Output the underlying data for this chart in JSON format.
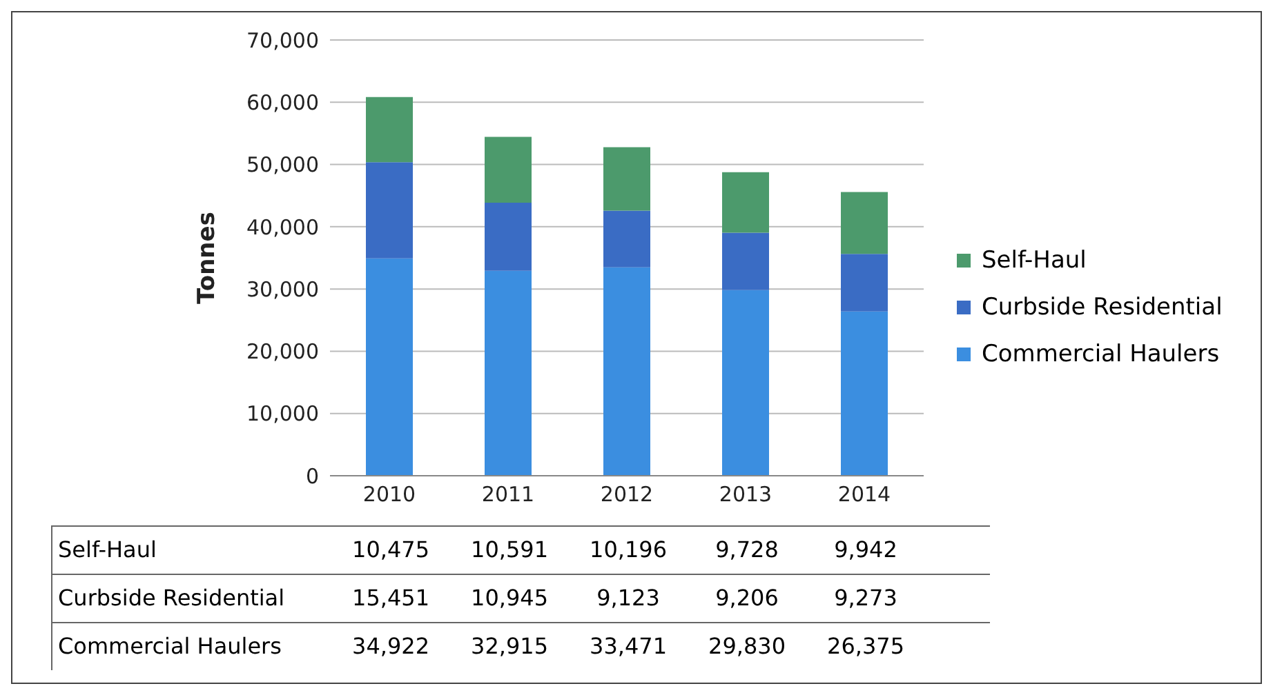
{
  "chart_data": {
    "type": "bar",
    "stacked": true,
    "ylabel": "Tonnes",
    "categories": [
      "2010",
      "2011",
      "2012",
      "2013",
      "2014"
    ],
    "series": [
      {
        "name": "Commercial Haulers",
        "color": "#3b8ee0",
        "values": [
          34922,
          32915,
          33471,
          29830,
          26375
        ],
        "value_labels": [
          "34,922",
          "32,915",
          "33,471",
          "29,830",
          "26,375"
        ]
      },
      {
        "name": "Curbside Residential",
        "color": "#3a6cc4",
        "values": [
          15451,
          10945,
          9123,
          9206,
          9273
        ],
        "value_labels": [
          "15,451",
          "10,945",
          "9,123",
          "9,206",
          "9,273"
        ]
      },
      {
        "name": "Self-Haul",
        "color": "#4c9a6c",
        "values": [
          10475,
          10591,
          10196,
          9728,
          9942
        ],
        "value_labels": [
          "10,475",
          "10,591",
          "10,196",
          "9,728",
          "9,942"
        ]
      }
    ],
    "ylim": [
      0,
      70000
    ],
    "yticks": [
      0,
      {
        "value": 10000,
        "label": "10,000"
      },
      {
        "value": 20000,
        "label": "20,000"
      },
      {
        "value": 30000,
        "label": "30,000"
      },
      {
        "value": 40000,
        "label": "40,000"
      },
      {
        "value": 50000,
        "label": "50,000"
      },
      {
        "value": 60000,
        "label": "60,000"
      },
      {
        "value": 70000,
        "label": "70,000"
      }
    ],
    "grid": "y",
    "legend": "right"
  }
}
